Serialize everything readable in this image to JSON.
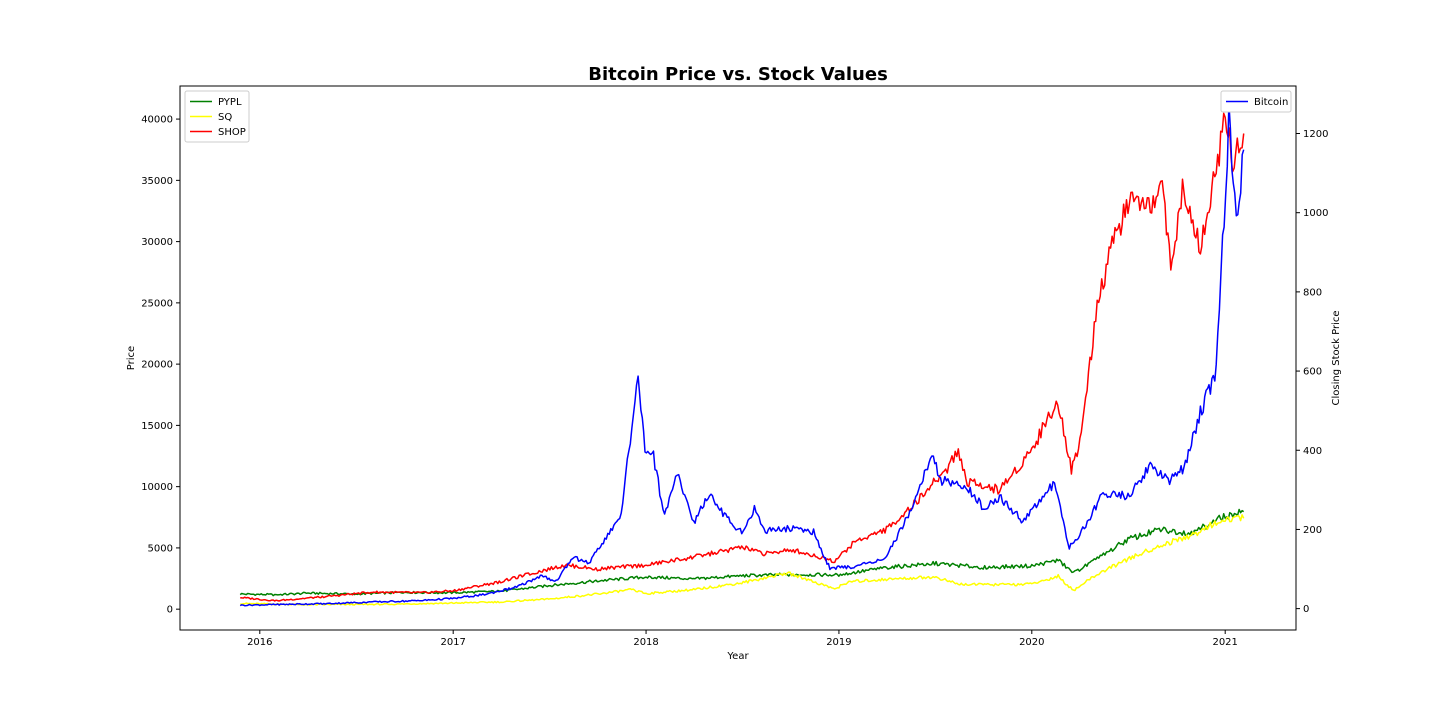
{
  "chart_data": {
    "type": "line",
    "title": "Bitcoin Price vs. Stock Values",
    "xlabel": "Year",
    "ylabel": "Price",
    "y2label": "Closing Stock Price",
    "x_ticks": [
      "2016",
      "2017",
      "2018",
      "2019",
      "2020",
      "2021"
    ],
    "xlim": [
      "2015-08-03",
      "2021-05-15"
    ],
    "ylim": [
      -1700,
      42700
    ],
    "y_ticks": [
      0,
      5000,
      10000,
      15000,
      20000,
      25000,
      30000,
      35000,
      40000
    ],
    "y2lim": [
      -54,
      1320
    ],
    "y2_ticks": [
      0,
      200,
      400,
      600,
      800,
      1000,
      1200
    ],
    "grid": false,
    "legend_left_placement": "upper-left",
    "legend_right_placement": "upper-right",
    "series": [
      {
        "name": "PYPL",
        "axis": "right",
        "color": "#008000",
        "points": [
          [
            "2015-11-25",
            37
          ],
          [
            "2016-02-01",
            35
          ],
          [
            "2016-04-01",
            39
          ],
          [
            "2016-07-01",
            37
          ],
          [
            "2016-10-01",
            41
          ],
          [
            "2017-01-01",
            40
          ],
          [
            "2017-04-01",
            44
          ],
          [
            "2017-07-01",
            58
          ],
          [
            "2017-10-01",
            70
          ],
          [
            "2018-01-01",
            80
          ],
          [
            "2018-04-01",
            75
          ],
          [
            "2018-07-01",
            83
          ],
          [
            "2018-10-01",
            86
          ],
          [
            "2019-01-01",
            85
          ],
          [
            "2019-04-01",
            104
          ],
          [
            "2019-07-01",
            114
          ],
          [
            "2019-10-01",
            104
          ],
          [
            "2020-01-01",
            108
          ],
          [
            "2020-02-20",
            122
          ],
          [
            "2020-03-20",
            90
          ],
          [
            "2020-05-01",
            123
          ],
          [
            "2020-07-01",
            175
          ],
          [
            "2020-09-01",
            200
          ],
          [
            "2020-11-01",
            190
          ],
          [
            "2020-12-01",
            214
          ],
          [
            "2021-01-01",
            234
          ],
          [
            "2021-02-05",
            245
          ]
        ]
      },
      {
        "name": "SQ",
        "axis": "right",
        "color": "#ffff00",
        "points": [
          [
            "2015-11-25",
            13
          ],
          [
            "2016-04-01",
            10
          ],
          [
            "2016-09-01",
            11
          ],
          [
            "2017-01-01",
            14
          ],
          [
            "2017-04-01",
            17
          ],
          [
            "2017-07-01",
            24
          ],
          [
            "2017-10-01",
            37
          ],
          [
            "2017-12-05",
            48
          ],
          [
            "2018-01-01",
            38
          ],
          [
            "2018-04-01",
            48
          ],
          [
            "2018-07-01",
            65
          ],
          [
            "2018-09-25",
            90
          ],
          [
            "2018-11-01",
            74
          ],
          [
            "2018-12-24",
            50
          ],
          [
            "2019-01-20",
            68
          ],
          [
            "2019-04-01",
            74
          ],
          [
            "2019-07-01",
            80
          ],
          [
            "2019-08-15",
            62
          ],
          [
            "2019-10-01",
            60
          ],
          [
            "2020-01-01",
            62
          ],
          [
            "2020-02-20",
            82
          ],
          [
            "2020-03-20",
            45
          ],
          [
            "2020-05-01",
            85
          ],
          [
            "2020-07-01",
            125
          ],
          [
            "2020-09-01",
            160
          ],
          [
            "2020-11-01",
            185
          ],
          [
            "2020-12-01",
            210
          ],
          [
            "2021-01-01",
            225
          ],
          [
            "2021-02-05",
            228
          ]
        ]
      },
      {
        "name": "SHOP",
        "axis": "right",
        "color": "#ff0000",
        "points": [
          [
            "2015-11-25",
            28
          ],
          [
            "2016-02-01",
            20
          ],
          [
            "2016-05-01",
            30
          ],
          [
            "2016-08-01",
            42
          ],
          [
            "2016-11-01",
            40
          ],
          [
            "2017-01-01",
            45
          ],
          [
            "2017-04-01",
            68
          ],
          [
            "2017-06-01",
            90
          ],
          [
            "2017-08-01",
            110
          ],
          [
            "2017-10-01",
            100
          ],
          [
            "2018-01-01",
            110
          ],
          [
            "2018-04-01",
            130
          ],
          [
            "2018-07-01",
            155
          ],
          [
            "2018-08-15",
            138
          ],
          [
            "2018-10-01",
            150
          ],
          [
            "2018-12-24",
            120
          ],
          [
            "2019-02-01",
            170
          ],
          [
            "2019-04-01",
            200
          ],
          [
            "2019-06-01",
            275
          ],
          [
            "2019-07-25",
            355
          ],
          [
            "2019-08-15",
            400
          ],
          [
            "2019-09-01",
            320
          ],
          [
            "2019-10-01",
            310
          ],
          [
            "2019-11-01",
            300
          ],
          [
            "2020-01-01",
            400
          ],
          [
            "2020-02-19",
            530
          ],
          [
            "2020-03-16",
            350
          ],
          [
            "2020-04-01",
            420
          ],
          [
            "2020-05-01",
            740
          ],
          [
            "2020-06-01",
            920
          ],
          [
            "2020-07-01",
            1020
          ],
          [
            "2020-08-15",
            1000
          ],
          [
            "2020-09-01",
            1100
          ],
          [
            "2020-09-20",
            880
          ],
          [
            "2020-10-15",
            1070
          ],
          [
            "2020-11-15",
            920
          ],
          [
            "2020-12-15",
            1100
          ],
          [
            "2021-01-01",
            1260
          ],
          [
            "2021-01-15",
            1140
          ],
          [
            "2021-02-05",
            1200
          ]
        ]
      },
      {
        "name": "Bitcoin",
        "axis": "left",
        "color": "#0000ff",
        "points": [
          [
            "2015-11-25",
            320
          ],
          [
            "2016-02-01",
            380
          ],
          [
            "2016-05-01",
            450
          ],
          [
            "2016-08-01",
            580
          ],
          [
            "2016-11-01",
            700
          ],
          [
            "2017-01-05",
            900
          ],
          [
            "2017-03-01",
            1200
          ],
          [
            "2017-05-01",
            1800
          ],
          [
            "2017-06-15",
            2700
          ],
          [
            "2017-07-15",
            2300
          ],
          [
            "2017-08-15",
            4200
          ],
          [
            "2017-09-15",
            3800
          ],
          [
            "2017-10-15",
            5600
          ],
          [
            "2017-11-15",
            7800
          ],
          [
            "2017-12-05",
            15000
          ],
          [
            "2017-12-17",
            19300
          ],
          [
            "2017-12-30",
            13000
          ],
          [
            "2018-01-15",
            12500
          ],
          [
            "2018-02-05",
            7500
          ],
          [
            "2018-03-01",
            11000
          ],
          [
            "2018-04-01",
            7000
          ],
          [
            "2018-05-01",
            9500
          ],
          [
            "2018-06-01",
            7500
          ],
          [
            "2018-07-01",
            6300
          ],
          [
            "2018-07-25",
            8200
          ],
          [
            "2018-08-15",
            6400
          ],
          [
            "2018-10-01",
            6600
          ],
          [
            "2018-11-14",
            6300
          ],
          [
            "2018-12-15",
            3300
          ],
          [
            "2019-02-01",
            3500
          ],
          [
            "2019-04-01",
            4200
          ],
          [
            "2019-05-15",
            8000
          ],
          [
            "2019-06-26",
            12500
          ],
          [
            "2019-07-15",
            10500
          ],
          [
            "2019-09-01",
            10000
          ],
          [
            "2019-10-01",
            8300
          ],
          [
            "2019-11-01",
            9200
          ],
          [
            "2019-12-15",
            7200
          ],
          [
            "2020-02-13",
            10300
          ],
          [
            "2020-03-12",
            5000
          ],
          [
            "2020-04-15",
            7000
          ],
          [
            "2020-05-15",
            9500
          ],
          [
            "2020-07-01",
            9200
          ],
          [
            "2020-08-15",
            11800
          ],
          [
            "2020-09-15",
            10500
          ],
          [
            "2020-10-15",
            11500
          ],
          [
            "2020-11-15",
            16000
          ],
          [
            "2020-12-15",
            19500
          ],
          [
            "2021-01-08",
            40000
          ],
          [
            "2021-01-22",
            31000
          ],
          [
            "2021-02-05",
            37500
          ]
        ]
      }
    ]
  }
}
